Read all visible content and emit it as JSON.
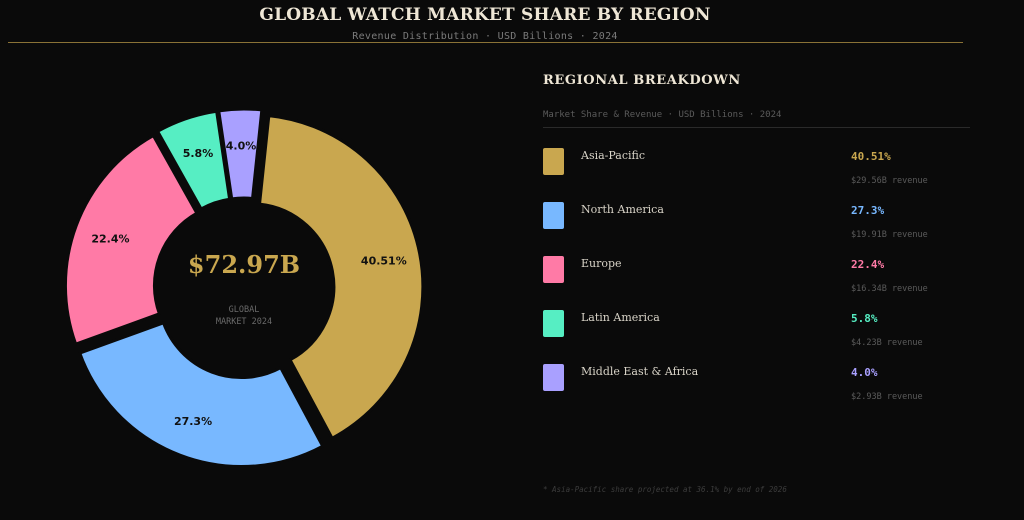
{
  "header": {
    "title": "GLOBAL WATCH MARKET SHARE BY REGION",
    "subtitle": "Revenue Distribution  ·  USD Billions  ·  2024"
  },
  "center": {
    "value": "$72.97B",
    "label_line1": "GLOBAL",
    "label_line2": "MARKET 2024"
  },
  "panel": {
    "title": "REGIONAL BREAKDOWN",
    "subtitle": "Market Share & Revenue · USD Billions · 2024",
    "footnote": "* Asia-Pacific share projected at 36.1% by end of 2026"
  },
  "legend": [
    {
      "name": "Asia-Pacific",
      "pct": "40.51%",
      "revenue": "$29.56B revenue",
      "color": "#c9a74f"
    },
    {
      "name": "North America",
      "pct": "27.3%",
      "revenue": "$19.91B revenue",
      "color": "#78b8ff"
    },
    {
      "name": "Europe",
      "pct": "22.4%",
      "revenue": "$16.34B revenue",
      "color": "#ff7aa6"
    },
    {
      "name": "Latin America",
      "pct": "5.8%",
      "revenue": "$4.23B revenue",
      "color": "#56eec3"
    },
    {
      "name": "Middle East & Africa",
      "pct": "4.0%",
      "revenue": "$2.93B revenue",
      "color": "#a9a0ff"
    }
  ],
  "chart_data": {
    "type": "pie",
    "variant": "donut",
    "title": "GLOBAL WATCH MARKET SHARE BY REGION",
    "subtitle": "Revenue Distribution  ·  USD Billions  ·  2024",
    "categories": [
      "Asia-Pacific",
      "North America",
      "Europe",
      "Latin America",
      "Middle East & Africa"
    ],
    "values": [
      40.51,
      27.3,
      22.4,
      5.8,
      4.0
    ],
    "value_labels": [
      "40.51%",
      "27.3%",
      "22.4%",
      "5.8%",
      "4.0%"
    ],
    "revenue_usd_billions": [
      29.56,
      19.91,
      16.34,
      4.23,
      2.93
    ],
    "colors": [
      "#c9a74f",
      "#78b8ff",
      "#ff7aa6",
      "#56eec3",
      "#a9a0ff"
    ],
    "total_label": "$72.97B",
    "start_angle_deg": 6,
    "direction": "clockwise",
    "exploded": true,
    "legend_position": "right"
  }
}
